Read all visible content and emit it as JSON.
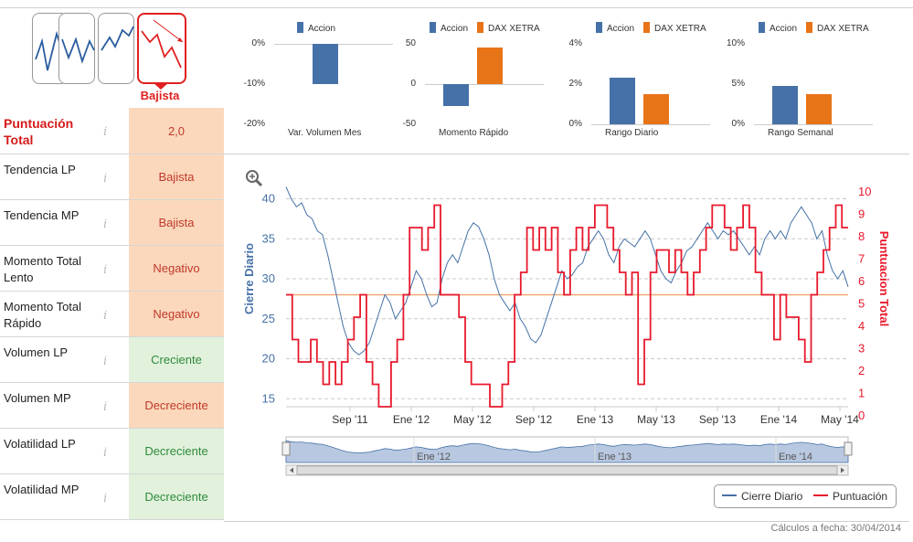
{
  "trend": {
    "active_label": "Bajista"
  },
  "rows": [
    {
      "label": "Puntuación Total",
      "value": "2,0",
      "tone": "neg",
      "score": true
    },
    {
      "label": "Tendencia LP",
      "value": "Bajista",
      "tone": "neg"
    },
    {
      "label": "Tendencia MP",
      "value": "Bajista",
      "tone": "neg"
    },
    {
      "label": "Momento Total Lento",
      "value": "Negativo",
      "tone": "neg"
    },
    {
      "label": "Momento Total Rápido",
      "value": "Negativo",
      "tone": "neg"
    },
    {
      "label": "Volumen LP",
      "value": "Creciente",
      "tone": "pos"
    },
    {
      "label": "Volumen MP",
      "value": "Decreciente",
      "tone": "neg"
    },
    {
      "label": "Volatilidad LP",
      "value": "Decreciente",
      "tone": "pos"
    },
    {
      "label": "Volatilidad MP",
      "value": "Decreciente",
      "tone": "pos"
    }
  ],
  "info_icon": "i",
  "colors": {
    "accion": "#4671a8",
    "dax": "#e87418",
    "close": "#4671a8",
    "score": "#e8192c",
    "neg_bg": "#fbd8bc",
    "pos_bg": "#e1f1dc"
  },
  "chart_data": [
    {
      "type": "bar",
      "title": "Var. Volumen Mes",
      "series": [
        {
          "name": "Accion",
          "values": [
            -10
          ]
        }
      ],
      "yticks": [
        "0%",
        "-10%",
        "-20%"
      ],
      "ylim": [
        -20,
        0
      ]
    },
    {
      "type": "bar",
      "title": "Momento Rápido",
      "series": [
        {
          "name": "Accion",
          "values": [
            -27
          ]
        },
        {
          "name": "DAX XETRA",
          "values": [
            45
          ]
        }
      ],
      "yticks": [
        "50",
        "0",
        "-50"
      ],
      "ylim": [
        -50,
        50
      ]
    },
    {
      "type": "bar",
      "title": "Rango Diario",
      "series": [
        {
          "name": "Accion",
          "values": [
            2.3
          ]
        },
        {
          "name": "DAX XETRA",
          "values": [
            1.5
          ]
        }
      ],
      "yticks": [
        "4%",
        "2%",
        "0%"
      ],
      "ylim": [
        0,
        4
      ]
    },
    {
      "type": "bar",
      "title": "Rango Semanal",
      "series": [
        {
          "name": "Accion",
          "values": [
            4.8
          ]
        },
        {
          "name": "DAX XETRA",
          "values": [
            3.8
          ]
        }
      ],
      "yticks": [
        "10%",
        "5%",
        "0%"
      ],
      "ylim": [
        0,
        10
      ]
    },
    {
      "type": "line",
      "ylabel_left": "Cierre Diario",
      "ylabel_right": "Puntuacion Total",
      "left_ticks": [
        "40",
        "35",
        "30",
        "25",
        "20",
        "15"
      ],
      "right_ticks": [
        "10",
        "9",
        "8",
        "7",
        "6",
        "5",
        "4",
        "3",
        "2",
        "1",
        "0"
      ],
      "ylim_left": [
        14,
        42
      ],
      "ylim_right": [
        0,
        10
      ],
      "x_labels": [
        "Sep '11",
        "Ene '12",
        "May '12",
        "Sep '12",
        "Ene '13",
        "May '13",
        "Sep '13",
        "Ene '14",
        "May '14"
      ],
      "reference_line": 5,
      "series": [
        {
          "name": "Cierre Diario",
          "values": [
            41.5,
            40,
            39,
            39.5,
            38,
            37.5,
            36,
            35.5,
            33,
            30,
            27,
            24,
            22,
            21,
            20.5,
            21,
            22,
            24,
            26,
            28,
            27,
            25,
            26,
            27,
            29,
            31,
            30,
            28,
            26.5,
            27,
            30,
            32,
            33,
            32,
            34,
            36,
            37,
            36.5,
            35,
            33,
            30,
            28,
            27,
            26,
            27,
            25,
            24,
            22.5,
            22,
            23,
            25,
            27,
            29,
            31,
            30,
            30.5,
            31.5,
            32,
            34,
            35,
            36,
            35,
            33,
            32,
            34,
            35,
            34.5,
            34,
            35,
            36,
            35,
            33,
            31,
            30,
            29.5,
            31,
            32,
            33.5,
            34,
            35,
            36,
            37,
            36,
            35,
            36,
            35.5,
            36,
            35,
            34,
            33,
            34,
            33,
            35,
            36,
            35,
            36,
            35,
            37,
            38,
            39,
            38,
            37,
            35,
            36,
            33,
            31,
            30,
            31,
            29
          ]
        },
        {
          "name": "Puntuación",
          "values": [
            5,
            3,
            2,
            2,
            3,
            2,
            1,
            2,
            1,
            2,
            3,
            4,
            5,
            2,
            1,
            0,
            0,
            2,
            3,
            5,
            8,
            8,
            7,
            8,
            9,
            5,
            5,
            5,
            4,
            2,
            1,
            1,
            1,
            0,
            0,
            1,
            2,
            5,
            6,
            8,
            7,
            8,
            7,
            8,
            6,
            5,
            7,
            8,
            7,
            8,
            9,
            9,
            8,
            7,
            6,
            5,
            6,
            1,
            3,
            6,
            7,
            7,
            6,
            7,
            6,
            5,
            6,
            7,
            8,
            9,
            9,
            8,
            7,
            8,
            9,
            8,
            6,
            5,
            5,
            3,
            5,
            4,
            4,
            3,
            2,
            5,
            6,
            7,
            8,
            9,
            8
          ]
        }
      ]
    }
  ],
  "navigator": {
    "x_labels": [
      "Ene '12",
      "Ene '13",
      "Ene '14"
    ]
  },
  "legend": {
    "close": "Cierre Diario",
    "score": "Puntuación"
  },
  "footer": "Cálculos a fecha: 30/04/2014"
}
